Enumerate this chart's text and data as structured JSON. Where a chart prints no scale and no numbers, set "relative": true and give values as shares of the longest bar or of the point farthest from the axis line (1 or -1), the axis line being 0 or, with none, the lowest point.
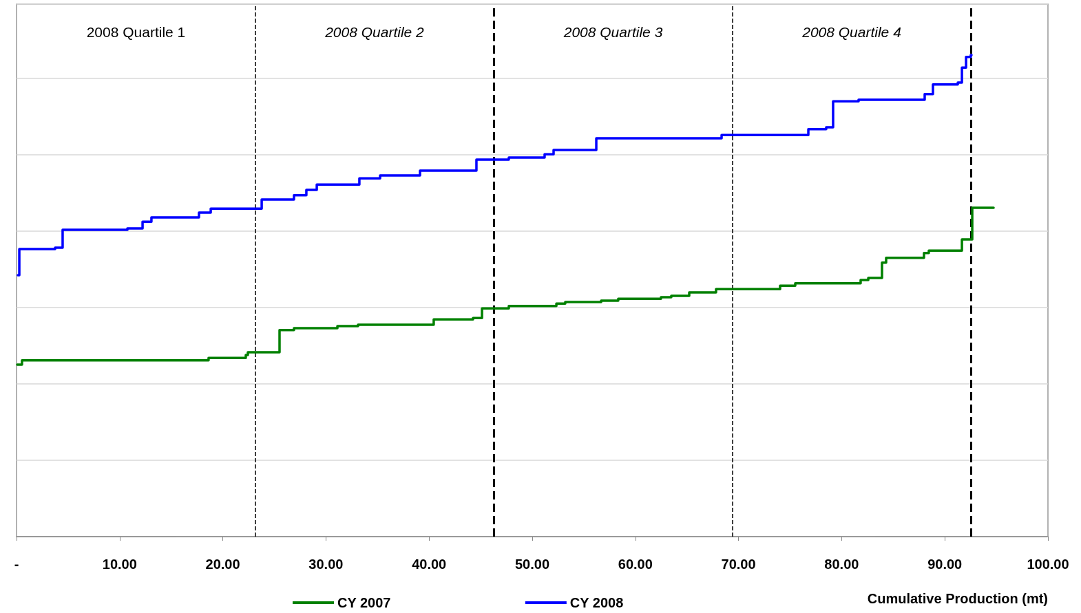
{
  "chart_data": {
    "type": "step",
    "relative": true,
    "xlabel": "Cumulative Production (mt)",
    "xlim": [
      0,
      100
    ],
    "xticks": [
      {
        "value": 0,
        "label": "-"
      },
      {
        "value": 10,
        "label": "10.00"
      },
      {
        "value": 20,
        "label": "20.00"
      },
      {
        "value": 30,
        "label": "30.00"
      },
      {
        "value": 40,
        "label": "40.00"
      },
      {
        "value": 50,
        "label": "50.00"
      },
      {
        "value": 60,
        "label": "60.00"
      },
      {
        "value": 70,
        "label": "70.00"
      },
      {
        "value": 80,
        "label": "80.00"
      },
      {
        "value": 90,
        "label": "90.00"
      },
      {
        "value": 100,
        "label": "100.00"
      }
    ],
    "grid": "y",
    "legend": "bottom",
    "marker": "none",
    "line_style": "solid",
    "series": [
      {
        "name": "CY 2007",
        "color": "#008000",
        "x": [
          0.07,
          0.53,
          18.62,
          22.23,
          22.43,
          25.5,
          26.9,
          31.11,
          33.11,
          40.45,
          44.26,
          45.13,
          47.73,
          52.34,
          53.2,
          56.68,
          58.34,
          62.48,
          63.48,
          65.22,
          67.82,
          74.03,
          75.5,
          81.84,
          82.58,
          83.91,
          84.31,
          87.98,
          88.45,
          91.66,
          92.66,
          94.73
        ],
        "values": [
          0.357,
          0.366,
          0.371,
          0.377,
          0.383,
          0.429,
          0.433,
          0.437,
          0.44,
          0.451,
          0.454,
          0.474,
          0.479,
          0.484,
          0.487,
          0.49,
          0.494,
          0.497,
          0.5,
          0.507,
          0.514,
          0.521,
          0.526,
          0.533,
          0.537,
          0.569,
          0.579,
          0.589,
          0.594,
          0.617,
          0.683,
          0.683
        ]
      },
      {
        "name": "CY 2008",
        "color": "#0000ff",
        "x": [
          0.13,
          0.27,
          3.74,
          4.47,
          10.75,
          12.22,
          13.08,
          17.69,
          18.83,
          23.77,
          26.9,
          28.1,
          29.11,
          33.24,
          35.25,
          39.12,
          44.59,
          47.73,
          51.2,
          52.07,
          56.21,
          68.36,
          76.77,
          78.5,
          79.17,
          81.64,
          88.05,
          88.85,
          91.26,
          91.66,
          92.06,
          92.52,
          92.59
        ],
        "values": [
          0.543,
          0.597,
          0.6,
          0.637,
          0.64,
          0.654,
          0.663,
          0.673,
          0.681,
          0.7,
          0.709,
          0.72,
          0.731,
          0.744,
          0.75,
          0.76,
          0.783,
          0.787,
          0.794,
          0.803,
          0.827,
          0.834,
          0.846,
          0.85,
          0.904,
          0.907,
          0.919,
          0.939,
          0.943,
          0.974,
          0.996,
          1,
          1
        ]
      }
    ],
    "ref_lines": [
      {
        "axis": "x",
        "value": 23.16,
        "color": "#000000",
        "line_style": "dashed"
      },
      {
        "axis": "x",
        "value": 46.26,
        "color": "#000000",
        "line_style": "dashed"
      },
      {
        "axis": "x",
        "value": 69.43,
        "color": "#000000",
        "line_style": "dashed"
      },
      {
        "axis": "x",
        "value": 92.52,
        "color": "#000000",
        "line_style": "dashed"
      }
    ],
    "annotations": [
      "2008 Quartile 1",
      "2008 Quartile 2",
      "2008 Quartile 3",
      "2008 Quartile 4"
    ]
  }
}
